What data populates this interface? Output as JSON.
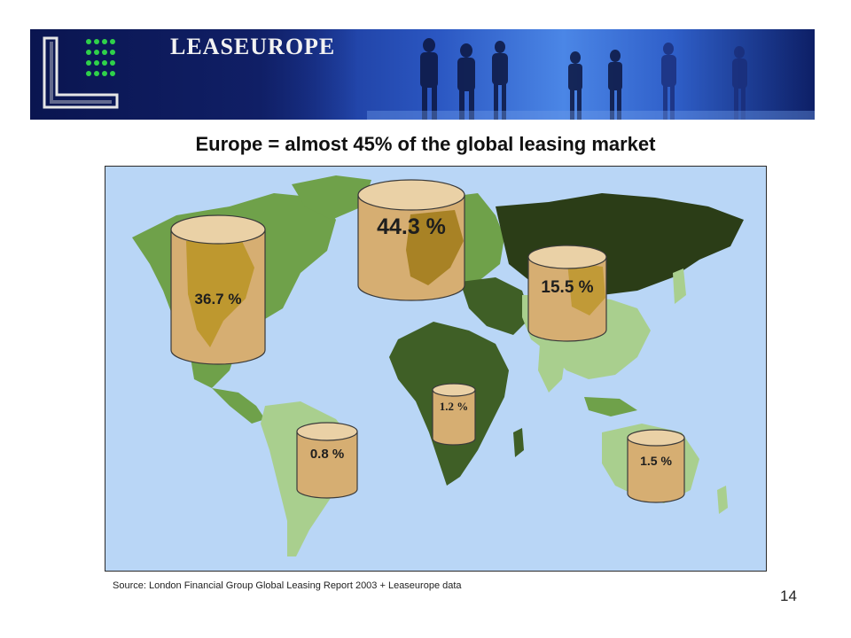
{
  "header": {
    "brand": "LEASEUROPE"
  },
  "title": "Europe = almost 45% of the global leasing market",
  "regions": [
    {
      "label": "36.7 %",
      "value": 36.7
    },
    {
      "label": "44.3 %",
      "value": 44.3
    },
    {
      "label": "15.5 %",
      "value": 15.5
    },
    {
      "label": "1.2 %",
      "value": 1.2
    },
    {
      "label": "0.8 %",
      "value": 0.8
    },
    {
      "label": "1.5 %",
      "value": 1.5
    }
  ],
  "source": "Source: London Financial Group Global Leasing Report 2003 + Leaseurope data",
  "page_number": "14",
  "colors": {
    "ocean": "#b9d6f6",
    "land_light": "#6fa14a",
    "land_dark": "#3f5f26",
    "land_darkest": "#2b3d17",
    "land_pale": "#a9cf8e",
    "cylinder": "#d6ae72",
    "cylinder_overlay": "#b8921e"
  }
}
